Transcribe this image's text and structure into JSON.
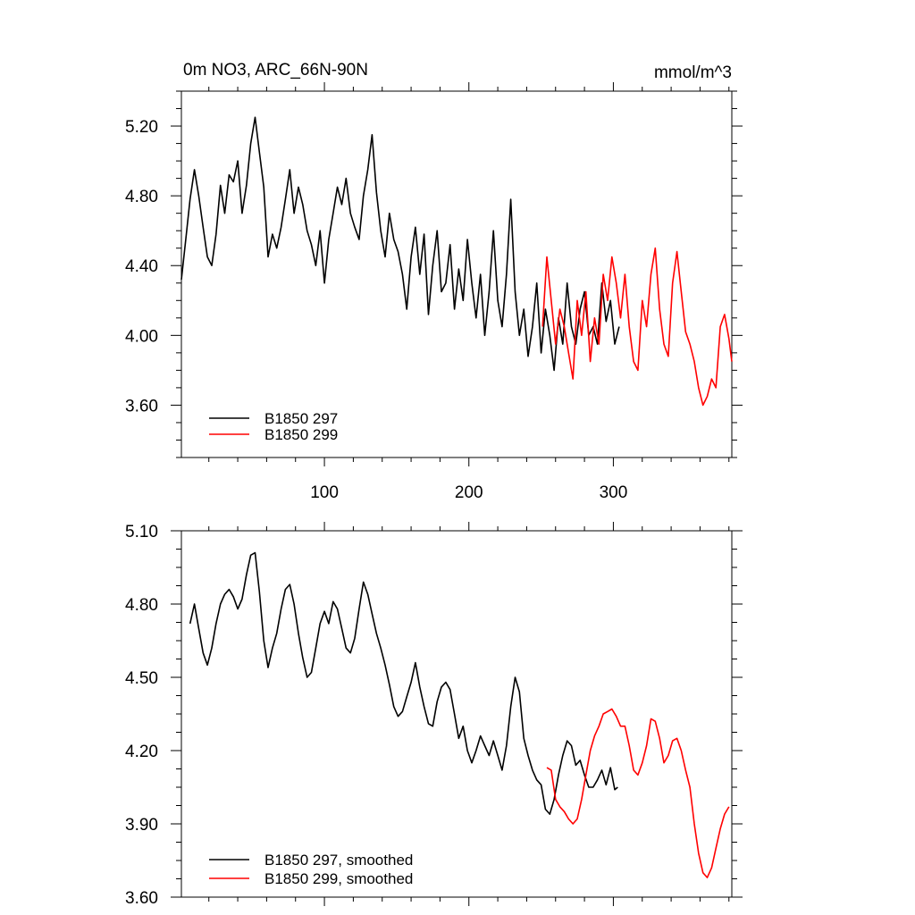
{
  "chart_data": [
    {
      "type": "line",
      "title": "0m NO3, ARC_66N-90N",
      "units": "mmol/m^3",
      "xlim": [
        1,
        382
      ],
      "ylim": [
        3.3,
        5.4
      ],
      "xticks": [
        100,
        200,
        300
      ],
      "xtick_labels": [
        "100",
        "200",
        "300"
      ],
      "yticks": [
        3.6,
        4.0,
        4.4,
        4.8,
        5.2
      ],
      "ytick_labels": [
        "3.60",
        "4.00",
        "4.40",
        "4.80",
        "5.20"
      ],
      "grid": false,
      "legend_position": "bottom-left",
      "series": [
        {
          "name": "B1850 297",
          "color": "#000000",
          "x": [
            1,
            4,
            7,
            10,
            13,
            16,
            19,
            22,
            25,
            28,
            31,
            34,
            37,
            40,
            43,
            46,
            49,
            52,
            55,
            58,
            61,
            64,
            67,
            70,
            73,
            76,
            79,
            82,
            85,
            88,
            91,
            94,
            97,
            100,
            103,
            106,
            109,
            112,
            115,
            118,
            121,
            124,
            127,
            130,
            133,
            136,
            139,
            142,
            145,
            148,
            151,
            154,
            157,
            160,
            163,
            166,
            169,
            172,
            175,
            178,
            181,
            184,
            187,
            190,
            193,
            196,
            199,
            202,
            205,
            208,
            211,
            214,
            217,
            220,
            223,
            226,
            229,
            232,
            235,
            238,
            241,
            244,
            247,
            250,
            253,
            256,
            259,
            262,
            265,
            268,
            271,
            274,
            277,
            280,
            283,
            286,
            289,
            292,
            295,
            298,
            301,
            304
          ],
          "values": [
            4.32,
            4.55,
            4.78,
            4.95,
            4.8,
            4.62,
            4.45,
            4.4,
            4.58,
            4.86,
            4.7,
            4.92,
            4.88,
            5.0,
            4.7,
            4.86,
            5.1,
            5.25,
            5.05,
            4.85,
            4.45,
            4.58,
            4.5,
            4.62,
            4.78,
            4.95,
            4.7,
            4.85,
            4.75,
            4.6,
            4.52,
            4.4,
            4.6,
            4.3,
            4.55,
            4.7,
            4.85,
            4.75,
            4.9,
            4.7,
            4.62,
            4.55,
            4.8,
            4.95,
            5.15,
            4.82,
            4.6,
            4.45,
            4.7,
            4.55,
            4.48,
            4.35,
            4.15,
            4.45,
            4.62,
            4.35,
            4.58,
            4.12,
            4.4,
            4.6,
            4.25,
            4.3,
            4.52,
            4.15,
            4.38,
            4.2,
            4.55,
            4.3,
            4.1,
            4.35,
            4.0,
            4.25,
            4.6,
            4.2,
            4.05,
            4.35,
            4.78,
            4.25,
            4.0,
            4.15,
            3.88,
            4.05,
            4.3,
            3.9,
            4.15,
            4.0,
            3.8,
            4.1,
            3.95,
            4.3,
            4.05,
            3.95,
            4.15,
            4.25,
            4.0,
            4.05,
            3.95,
            4.3,
            4.08,
            4.2,
            3.95,
            4.05
          ]
        },
        {
          "name": "B1850 299",
          "color": "#ff0000",
          "x": [
            251,
            254,
            257,
            260,
            263,
            266,
            269,
            272,
            275,
            278,
            281,
            284,
            287,
            290,
            293,
            296,
            299,
            302,
            305,
            308,
            311,
            314,
            317,
            320,
            323,
            326,
            329,
            332,
            335,
            338,
            341,
            344,
            347,
            350,
            353,
            356,
            359,
            362,
            365,
            368,
            371,
            374,
            377,
            380,
            382
          ],
          "values": [
            4.05,
            4.45,
            4.2,
            3.95,
            4.15,
            4.05,
            3.9,
            3.75,
            4.2,
            4.0,
            4.25,
            3.85,
            4.1,
            3.95,
            4.35,
            4.2,
            4.45,
            4.3,
            4.1,
            4.35,
            4.05,
            3.85,
            3.8,
            4.2,
            4.05,
            4.35,
            4.5,
            4.15,
            3.95,
            3.88,
            4.3,
            4.48,
            4.25,
            4.02,
            3.95,
            3.85,
            3.7,
            3.6,
            3.65,
            3.75,
            3.7,
            4.05,
            4.12,
            3.98,
            3.85
          ]
        }
      ]
    },
    {
      "type": "line",
      "title": "",
      "xlim": [
        1,
        382
      ],
      "ylim": [
        3.6,
        5.1
      ],
      "xticks": [
        100,
        200,
        300
      ],
      "yticks": [
        3.6,
        3.9,
        4.2,
        4.5,
        4.8,
        5.1
      ],
      "ytick_labels": [
        "3.60",
        "3.90",
        "4.20",
        "4.50",
        "4.80",
        "5.10"
      ],
      "grid": false,
      "legend_position": "bottom-left",
      "series": [
        {
          "name": "B1850 297, smoothed",
          "color": "#000000",
          "x": [
            7,
            10,
            13,
            16,
            19,
            22,
            25,
            28,
            31,
            34,
            37,
            40,
            43,
            46,
            49,
            52,
            55,
            58,
            61,
            64,
            67,
            70,
            73,
            76,
            79,
            82,
            85,
            88,
            91,
            94,
            97,
            100,
            103,
            106,
            109,
            112,
            115,
            118,
            121,
            124,
            127,
            130,
            133,
            136,
            139,
            142,
            145,
            148,
            151,
            154,
            157,
            160,
            163,
            166,
            169,
            172,
            175,
            178,
            181,
            184,
            187,
            190,
            193,
            196,
            199,
            202,
            205,
            208,
            211,
            214,
            217,
            220,
            223,
            226,
            229,
            232,
            235,
            238,
            241,
            244,
            247,
            250,
            253,
            256,
            259,
            262,
            265,
            268,
            271,
            274,
            277,
            280,
            283,
            286,
            289,
            292,
            295,
            298,
            301,
            303
          ],
          "values": [
            4.72,
            4.8,
            4.7,
            4.6,
            4.55,
            4.62,
            4.72,
            4.8,
            4.84,
            4.86,
            4.83,
            4.78,
            4.82,
            4.92,
            5.0,
            5.01,
            4.85,
            4.65,
            4.54,
            4.62,
            4.68,
            4.78,
            4.86,
            4.88,
            4.8,
            4.68,
            4.58,
            4.5,
            4.52,
            4.62,
            4.72,
            4.77,
            4.72,
            4.81,
            4.78,
            4.7,
            4.62,
            4.6,
            4.66,
            4.78,
            4.89,
            4.84,
            4.76,
            4.68,
            4.62,
            4.55,
            4.47,
            4.38,
            4.34,
            4.36,
            4.42,
            4.48,
            4.56,
            4.46,
            4.38,
            4.31,
            4.3,
            4.4,
            4.46,
            4.48,
            4.45,
            4.35,
            4.25,
            4.3,
            4.2,
            4.15,
            4.2,
            4.26,
            4.22,
            4.18,
            4.24,
            4.18,
            4.12,
            4.22,
            4.38,
            4.5,
            4.44,
            4.25,
            4.18,
            4.12,
            4.08,
            4.06,
            3.96,
            3.94,
            4.0,
            4.1,
            4.18,
            4.24,
            4.22,
            4.14,
            4.16,
            4.1,
            4.05,
            4.05,
            4.08,
            4.12,
            4.06,
            4.13,
            4.04,
            4.05
          ]
        },
        {
          "name": "B1850 299, smoothed",
          "color": "#ff0000",
          "x": [
            254,
            257,
            260,
            263,
            266,
            269,
            272,
            275,
            278,
            281,
            284,
            287,
            290,
            293,
            296,
            299,
            302,
            305,
            308,
            311,
            314,
            317,
            320,
            323,
            326,
            329,
            332,
            335,
            338,
            341,
            344,
            347,
            350,
            353,
            356,
            359,
            362,
            365,
            368,
            371,
            374,
            377,
            380
          ],
          "values": [
            4.13,
            4.12,
            4.0,
            3.97,
            3.95,
            3.92,
            3.9,
            3.92,
            4.0,
            4.1,
            4.2,
            4.26,
            4.3,
            4.35,
            4.36,
            4.37,
            4.34,
            4.3,
            4.3,
            4.22,
            4.12,
            4.1,
            4.15,
            4.22,
            4.33,
            4.32,
            4.25,
            4.15,
            4.18,
            4.24,
            4.25,
            4.2,
            4.12,
            4.05,
            3.9,
            3.78,
            3.7,
            3.68,
            3.72,
            3.8,
            3.88,
            3.94,
            3.97
          ]
        }
      ]
    }
  ]
}
